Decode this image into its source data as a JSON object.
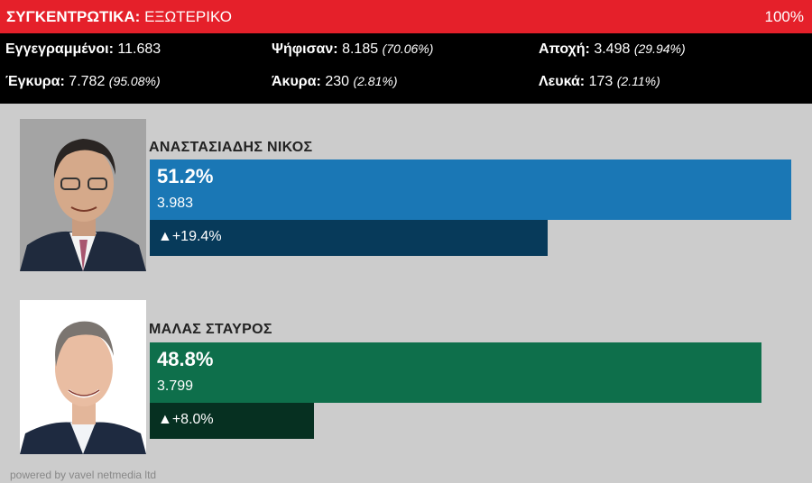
{
  "header": {
    "title_bold": "ΣΥΓΚΕΝΤΡΩΤΙΚΑ:",
    "title_rest": "ΕΞΩΤΕΡΙΚΟ",
    "counted": "100%"
  },
  "stats": {
    "registered_label": "Εγγεγραμμένοι:",
    "registered_value": "11.683",
    "voted_label": "Ψήφισαν:",
    "voted_value": "8.185",
    "voted_pct": "(70.06%)",
    "abstention_label": "Αποχή:",
    "abstention_value": "3.498",
    "abstention_pct": "(29.94%)",
    "valid_label": "Έγκυρα:",
    "valid_value": "7.782",
    "valid_pct": "(95.08%)",
    "invalid_label": "Άκυρα:",
    "invalid_value": "230",
    "invalid_pct": "(2.81%)",
    "blank_label": "Λευκά:",
    "blank_value": "173",
    "blank_pct": "(2.11%)"
  },
  "candidates": [
    {
      "name": "ΑΝΑΣΤΑΣΙΑΔΗΣ ΝΙΚΟΣ",
      "percent": "51.2%",
      "votes": "3.983",
      "change": "▲+19.4%",
      "share": 0.512,
      "change_value": 19.4,
      "bar_color": "#1a77b5",
      "change_color": "#073a5a"
    },
    {
      "name": "ΜΑΛΑΣ ΣΤΑΥΡΟΣ",
      "percent": "48.8%",
      "votes": "3.799",
      "change": "▲+8.0%",
      "share": 0.488,
      "change_value": 8.0,
      "bar_color": "#0e6f4b",
      "change_color": "#063021"
    }
  ],
  "footer": "powered by vavel netmedia ltd"
}
